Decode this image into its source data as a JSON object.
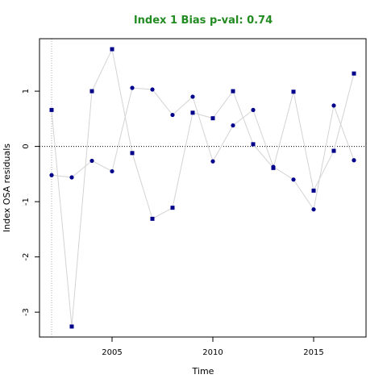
{
  "chart_data": {
    "type": "scatter",
    "title": "Index 1 Bias p-val: 0.74",
    "title_color": "#228B22",
    "xlabel": "Time",
    "ylabel": "Index OSA residuals",
    "xlim": [
      2001.4,
      2017.6
    ],
    "ylim": [
      -3.45,
      1.95
    ],
    "xticks": [
      2005,
      2010,
      2015
    ],
    "yticks": [
      -3,
      -2,
      -1,
      0,
      1
    ],
    "zero_line": 0,
    "vertical_reference_line": 2002,
    "point_color": "#00008B",
    "line_color": "#D3D3D3",
    "series": [
      {
        "marker": "square",
        "x": [
          2002,
          2003,
          2004,
          2005,
          2006,
          2007,
          2008,
          2009,
          2010,
          2011,
          2012,
          2013,
          2014,
          2015,
          2016,
          2017
        ],
        "values": [
          0.66,
          -3.26,
          1.0,
          1.76,
          -0.12,
          -1.31,
          -1.11,
          0.61,
          0.51,
          1.0,
          0.04,
          -0.39,
          0.99,
          -0.8,
          -0.08,
          1.32
        ]
      },
      {
        "marker": "circle",
        "x": [
          2002,
          2003,
          2004,
          2005,
          2006,
          2007,
          2008,
          2009,
          2010,
          2011,
          2012,
          2013,
          2014,
          2015,
          2016,
          2017
        ],
        "values": [
          -0.52,
          -0.56,
          -0.26,
          -0.45,
          1.06,
          1.03,
          0.57,
          0.9,
          -0.27,
          0.38,
          0.66,
          -0.37,
          -0.6,
          -1.14,
          0.74,
          -0.25
        ]
      }
    ]
  }
}
